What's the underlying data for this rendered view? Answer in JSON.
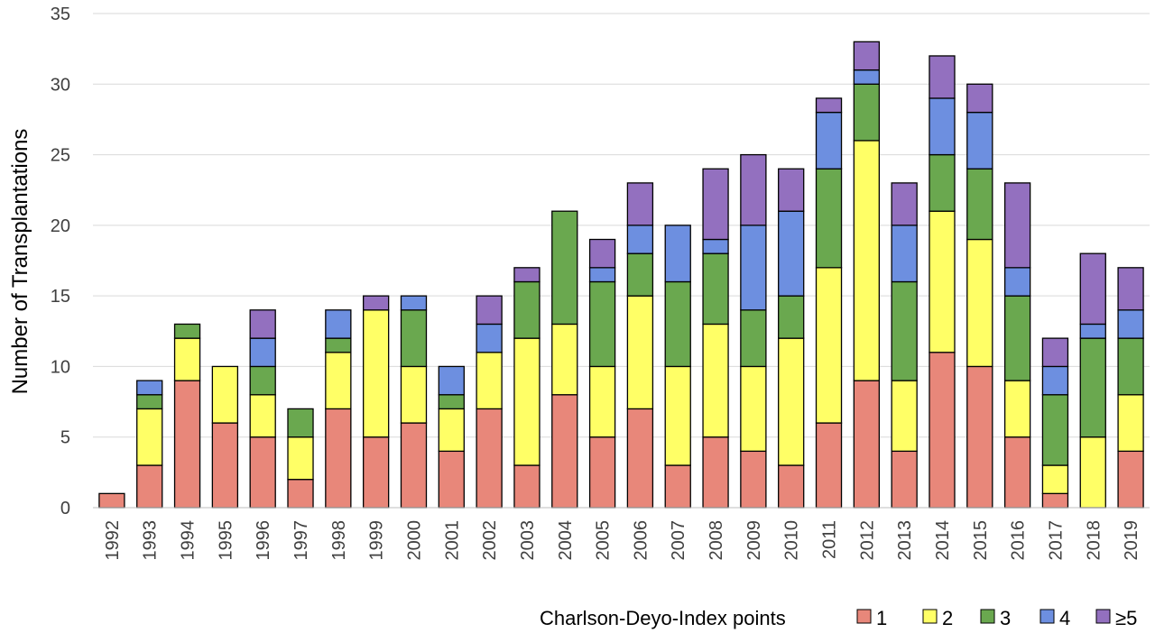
{
  "chart_data": {
    "type": "bar",
    "stacked": true,
    "title": "",
    "xlabel": "",
    "ylabel": "Number of Transplantations",
    "ylim": [
      0,
      35
    ],
    "yticks": [
      0,
      5,
      10,
      15,
      20,
      25,
      30,
      35
    ],
    "grid": true,
    "categories": [
      "1992",
      "1993",
      "1994",
      "1995",
      "1996",
      "1997",
      "1998",
      "1999",
      "2000",
      "2001",
      "2002",
      "2003",
      "2004",
      "2005",
      "2006",
      "2007",
      "2008",
      "2009",
      "2010",
      "2011",
      "2012",
      "2013",
      "2014",
      "2015",
      "2016",
      "2017",
      "2018",
      "2019"
    ],
    "legend_title": "Charlson-Deyo-Index points",
    "legend_position": "bottom-right",
    "series": [
      {
        "name": "1",
        "color": "#E8877A",
        "values": [
          1,
          3,
          9,
          6,
          5,
          2,
          7,
          5,
          6,
          4,
          7,
          3,
          8,
          5,
          7,
          3,
          5,
          4,
          3,
          6,
          9,
          4,
          11,
          10,
          5,
          1,
          0,
          4
        ]
      },
      {
        "name": "2",
        "color": "#FFFF66",
        "values": [
          0,
          4,
          3,
          4,
          3,
          3,
          4,
          9,
          4,
          3,
          4,
          9,
          5,
          5,
          8,
          7,
          8,
          6,
          9,
          11,
          17,
          5,
          10,
          9,
          4,
          2,
          5,
          4
        ]
      },
      {
        "name": "3",
        "color": "#6AA84F",
        "values": [
          0,
          1,
          1,
          0,
          2,
          2,
          1,
          0,
          4,
          1,
          0,
          4,
          8,
          6,
          3,
          6,
          5,
          4,
          3,
          7,
          4,
          7,
          4,
          5,
          6,
          5,
          7,
          4
        ]
      },
      {
        "name": "4",
        "color": "#6D8FE0",
        "values": [
          0,
          1,
          0,
          0,
          2,
          0,
          2,
          0,
          1,
          2,
          2,
          0,
          0,
          1,
          2,
          4,
          1,
          6,
          6,
          4,
          1,
          4,
          4,
          4,
          2,
          2,
          1,
          2
        ]
      },
      {
        "name": "≥5",
        "color": "#9370BF",
        "values": [
          0,
          0,
          0,
          0,
          2,
          0,
          0,
          1,
          0,
          0,
          2,
          1,
          0,
          2,
          3,
          0,
          5,
          5,
          3,
          1,
          2,
          3,
          3,
          2,
          6,
          2,
          5,
          3
        ]
      }
    ]
  }
}
